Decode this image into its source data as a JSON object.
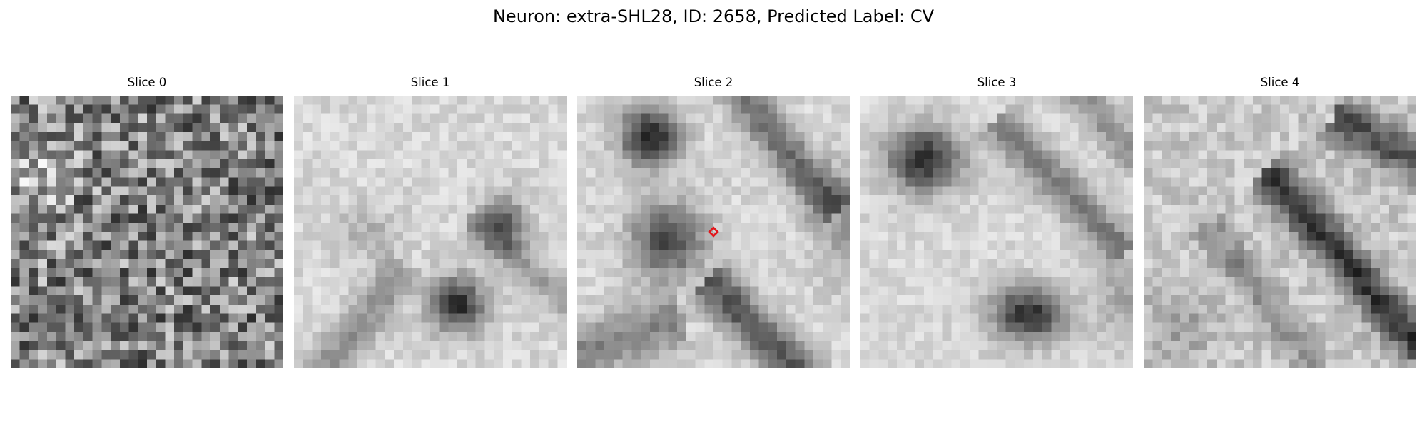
{
  "figure": {
    "title": "Neuron: extra-SHL28, ID: 2658, Predicted Label: CV"
  },
  "panels": [
    {
      "title": "Slice 0",
      "texture": "noise"
    },
    {
      "title": "Slice 1",
      "texture": "blobs"
    },
    {
      "title": "Slice 2",
      "texture": "blobs-marked"
    },
    {
      "title": "Slice 3",
      "texture": "blobs"
    },
    {
      "title": "Slice 4",
      "texture": "diagonal-streaks"
    }
  ],
  "colors": {
    "marker": "#e3161b",
    "colormap": "gray"
  },
  "marker": {
    "icon": "red-diamond-marker"
  }
}
